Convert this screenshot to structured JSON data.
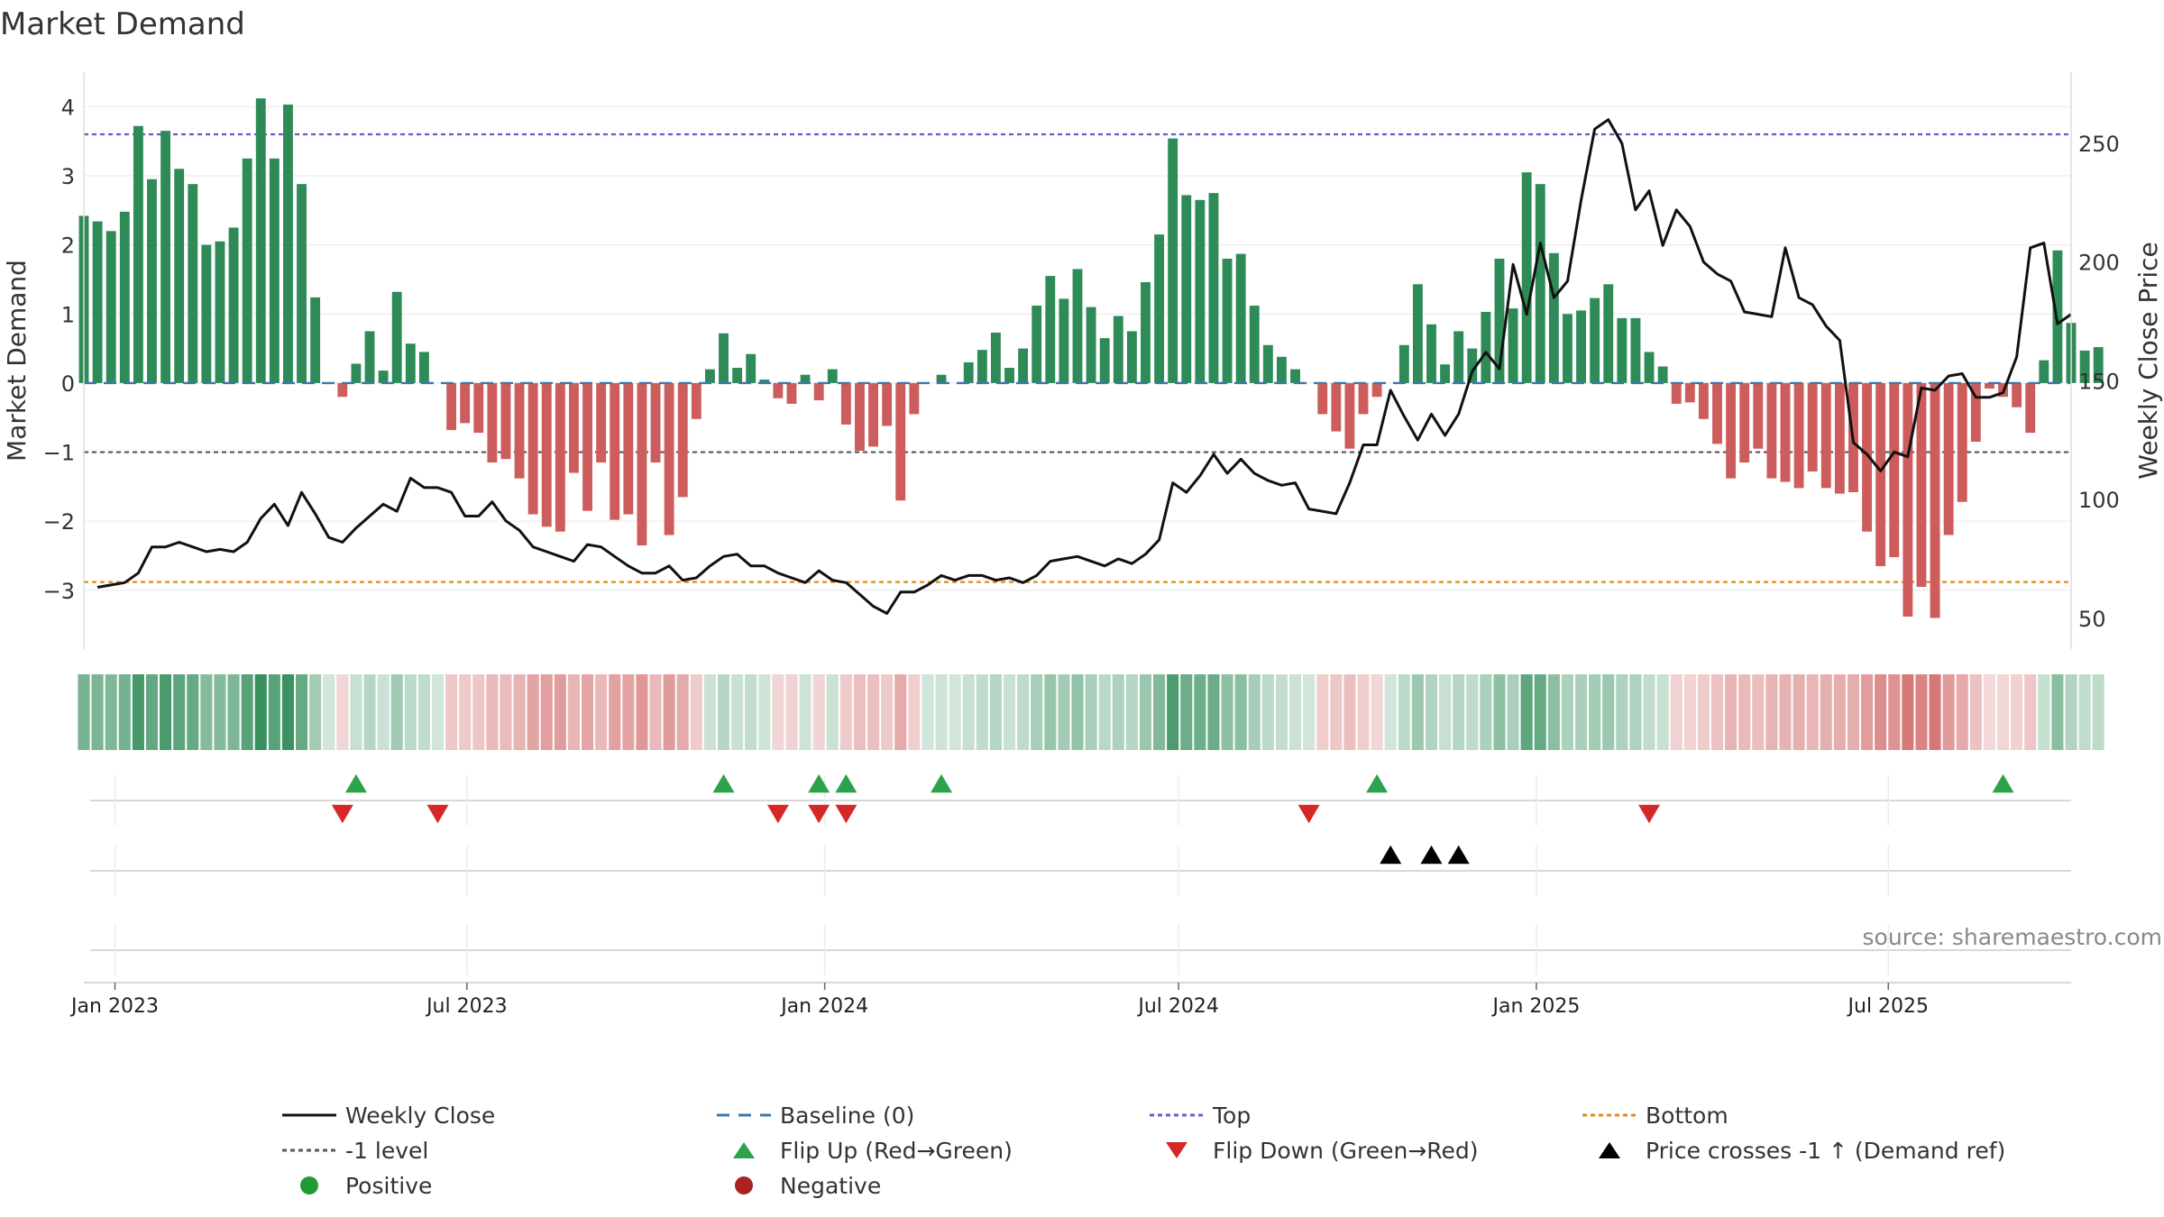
{
  "chart_data": {
    "type": "bar",
    "title": "Market Demand",
    "ylabel": "Market Demand",
    "y2label": "Weekly Close Price",
    "ylim": [
      -3.85,
      4.5
    ],
    "y2lim": [
      37,
      280
    ],
    "yticks": [
      -3,
      -2,
      -1,
      0,
      1,
      2,
      3,
      4
    ],
    "y2ticks": [
      50,
      100,
      150,
      200,
      250
    ],
    "x_start": "2022-12-16",
    "x_end": "2025-10-03",
    "week_step_days": 7,
    "xticks": [
      {
        "date": "2023-01-01",
        "label": "Jan 2023"
      },
      {
        "date": "2023-07-01",
        "label": "Jul 2023"
      },
      {
        "date": "2024-01-01",
        "label": "Jan 2024"
      },
      {
        "date": "2024-07-01",
        "label": "Jul 2024"
      },
      {
        "date": "2025-01-01",
        "label": "Jan 2025"
      },
      {
        "date": "2025-07-01",
        "label": "Jul 2025"
      }
    ],
    "reference_lines": {
      "baseline": 0,
      "top": 3.6,
      "bottom": -2.88,
      "minus_one": -1
    },
    "series": [
      {
        "name": "Market Demand",
        "values": [
          2.42,
          2.34,
          2.2,
          2.48,
          3.72,
          2.95,
          3.65,
          3.1,
          2.88,
          2.0,
          2.05,
          2.25,
          3.25,
          4.12,
          3.25,
          4.03,
          2.88,
          1.24,
          0,
          -0.2,
          0.28,
          0.75,
          0.18,
          1.32,
          0.57,
          0.45,
          0,
          -0.68,
          -0.58,
          -0.72,
          -1.15,
          -1.1,
          -1.38,
          -1.9,
          -2.08,
          -2.15,
          -1.3,
          -1.85,
          -1.15,
          -1.98,
          -1.9,
          -2.35,
          -1.15,
          -2.2,
          -1.65,
          -0.52,
          0.2,
          0.72,
          0.22,
          0.42,
          0.05,
          -0.22,
          -0.3,
          0.12,
          -0.25,
          0.2,
          -0.6,
          -0.98,
          -0.92,
          -0.62,
          -1.7,
          -0.45,
          0,
          0.12,
          0,
          0.3,
          0.48,
          0.73,
          0.22,
          0.5,
          1.12,
          1.55,
          1.22,
          1.65,
          1.1,
          0.65,
          0.97,
          0.75,
          1.46,
          2.15,
          3.54,
          2.72,
          2.65,
          2.75,
          1.8,
          1.87,
          1.12,
          0.55,
          0.38,
          0.2,
          0,
          -0.45,
          -0.7,
          -0.95,
          -0.45,
          -0.2,
          0,
          0.55,
          1.43,
          0.85,
          0.27,
          0.75,
          0.5,
          1.03,
          1.8,
          1.08,
          3.05,
          2.88,
          1.88,
          1.0,
          1.05,
          1.23,
          1.43,
          0.94,
          0.94,
          0.45,
          0.24,
          -0.3,
          -0.28,
          -0.52,
          -0.88,
          -1.38,
          -1.15,
          -0.95,
          -1.38,
          -1.43,
          -1.52,
          -1.28,
          -1.52,
          -1.6,
          -1.58,
          -2.15,
          -2.65,
          -2.52,
          -3.38,
          -2.95,
          -3.4,
          -2.2,
          -1.72,
          -0.85,
          -0.08,
          -0.2,
          -0.35,
          -0.72,
          0.33,
          1.92,
          0.87,
          0.47,
          0.52
        ]
      },
      {
        "name": "Weekly Close",
        "values": [
          63,
          64,
          65,
          69,
          80,
          80,
          82,
          80,
          78,
          79,
          78,
          82,
          92,
          98,
          89,
          103,
          94,
          84,
          82,
          88,
          93,
          98,
          95,
          109,
          105,
          105,
          103,
          93,
          93,
          99,
          91,
          87,
          80,
          78,
          76,
          74,
          81,
          80,
          76,
          72,
          69,
          69,
          72,
          66,
          67,
          72,
          76,
          77,
          72,
          72,
          69,
          67,
          65,
          70,
          66,
          65,
          60,
          55,
          52,
          61,
          61,
          64,
          68,
          66,
          68,
          68,
          66,
          67,
          65,
          68,
          74,
          75,
          76,
          74,
          72,
          75,
          73,
          77,
          83,
          107,
          103,
          110,
          119,
          111,
          117,
          111,
          108,
          106,
          107,
          96,
          95,
          94,
          107,
          123,
          123,
          146,
          135,
          125,
          136,
          127,
          136,
          154,
          162,
          155,
          199,
          178,
          208,
          185,
          192,
          226,
          256,
          260,
          250,
          222,
          230,
          207,
          222,
          215,
          200,
          195,
          192,
          179,
          178,
          177,
          206,
          185,
          182,
          173,
          167,
          124,
          119,
          112,
          120,
          118,
          147,
          146,
          152,
          153,
          143,
          143,
          145,
          160,
          206,
          208,
          174,
          178
        ],
        "x_offset": 1
      }
    ],
    "flip_up_weeks": [
      20,
      47,
      54,
      56,
      63,
      95,
      141
    ],
    "flip_down_weeks": [
      19,
      26,
      51,
      54,
      56,
      90,
      115
    ],
    "price_cross_weeks": [
      96,
      99,
      101
    ]
  },
  "footer": {
    "source": "source: sharemaestro.com"
  },
  "legend": {
    "items": [
      {
        "label": "Weekly Close",
        "symbol": "line",
        "color": "#111111"
      },
      {
        "label": "Baseline (0)",
        "symbol": "dash",
        "color": "#3a78b0"
      },
      {
        "label": "Top",
        "symbol": "dot",
        "color": "#6a5acd"
      },
      {
        "label": "Bottom",
        "symbol": "dot",
        "color": "#e08a1b"
      },
      {
        "label": "-1 level",
        "symbol": "dot",
        "color": "#555566"
      },
      {
        "label": "Flip Up (Red→Green)",
        "symbol": "tri-up",
        "color": "#2ca34b"
      },
      {
        "label": "Flip Down (Green→Red)",
        "symbol": "tri-down",
        "color": "#d62728"
      },
      {
        "label": "Price crosses -1 ↑ (Demand ref)",
        "symbol": "tri-up",
        "color": "#000000"
      },
      {
        "label": "Positive",
        "symbol": "circle",
        "color": "#229933"
      },
      {
        "label": "Negative",
        "symbol": "circle",
        "color": "#aa2222"
      }
    ]
  },
  "colors": {
    "positive_bar": "#2e8b57",
    "negative_bar": "#cd5c5c",
    "price_line": "#111111"
  }
}
